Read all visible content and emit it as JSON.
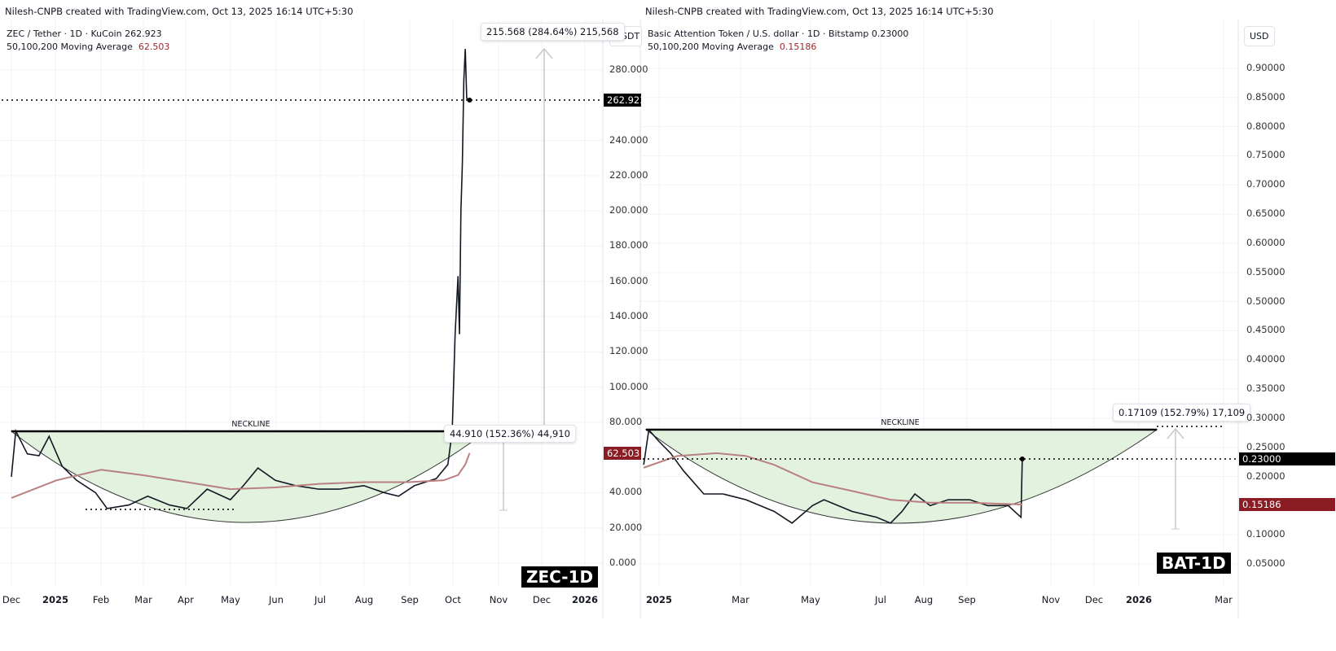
{
  "charts": [
    {
      "credit": "Nilesh-CNPB created with TradingView.com, Oct 13, 2025 16:14 UTC+5:30",
      "symbol_line": "ZEC / Tether · 1D · KuCoin  262.923",
      "ma_label": "50,100,200 Moving Average",
      "ma_value": "62.503",
      "unit": "USDT",
      "last_price_tag": "262.923",
      "ma_tag": "62.503",
      "upper_measure": "215.568 (284.64%) 215,568",
      "lower_measure": "44.910 (152.36%) 44,910",
      "neckline": "NECKLINE",
      "badge": "ZEC-1D",
      "yticks": [
        "280.000",
        "240.000",
        "220.000",
        "200.000",
        "180.000",
        "160.000",
        "140.000",
        "120.000",
        "100.000",
        "80.000",
        "40.000",
        "20.000",
        "0.000"
      ],
      "xticks": [
        "Dec",
        "2025",
        "Feb",
        "Mar",
        "Apr",
        "May",
        "Jun",
        "Jul",
        "Aug",
        "Sep",
        "Oct",
        "Nov",
        "Dec",
        "2026"
      ]
    },
    {
      "credit": "Nilesh-CNPB created with TradingView.com, Oct 13, 2025 16:14 UTC+5:30",
      "symbol_line": "Basic Attention Token / U.S. dollar · 1D · Bitstamp  0.23000",
      "ma_label": "50,100,200 Moving Average",
      "ma_value": "0.15186",
      "unit": "USD",
      "last_price_tag": "0.23000",
      "ma_tag": "0.15186",
      "upper_measure": "0.17109 (152.79%) 17,109",
      "neckline": "NECKLINE",
      "badge": "BAT-1D",
      "yticks": [
        "0.90000",
        "0.85000",
        "0.80000",
        "0.75000",
        "0.70000",
        "0.65000",
        "0.60000",
        "0.55000",
        "0.50000",
        "0.45000",
        "0.40000",
        "0.35000",
        "0.30000",
        "0.25000",
        "0.20000",
        "0.10000",
        "0.05000"
      ],
      "xticks": [
        "2025",
        "Mar",
        "May",
        "Jul",
        "Aug",
        "Sep",
        "Nov",
        "Dec",
        "2026",
        "Mar"
      ]
    }
  ],
  "chart_data": [
    {
      "type": "line",
      "title": "ZEC / Tether · 1D · KuCoin",
      "ylim": [
        0,
        290
      ],
      "colors": {
        "price": "#131722",
        "ma": "#b98080",
        "cup_fill": "#e3f2df"
      },
      "series": [
        {
          "name": "ZEC / Tether",
          "points": [
            [
              "2024-12-01",
              49
            ],
            [
              "2024-12-04",
              75
            ],
            [
              "2024-12-12",
              62
            ],
            [
              "2024-12-20",
              61
            ],
            [
              "2024-12-27",
              72
            ],
            [
              "2025-01-05",
              55
            ],
            [
              "2025-01-15",
              47
            ],
            [
              "2025-01-28",
              40
            ],
            [
              "2025-02-05",
              31
            ],
            [
              "2025-02-20",
              33
            ],
            [
              "2025-03-05",
              38
            ],
            [
              "2025-03-20",
              33
            ],
            [
              "2025-04-01",
              31
            ],
            [
              "2025-04-15",
              42
            ],
            [
              "2025-05-01",
              36
            ],
            [
              "2025-05-10",
              44
            ],
            [
              "2025-05-20",
              54
            ],
            [
              "2025-06-01",
              47
            ],
            [
              "2025-06-15",
              44
            ],
            [
              "2025-07-01",
              42
            ],
            [
              "2025-07-15",
              42
            ],
            [
              "2025-08-01",
              44
            ],
            [
              "2025-08-15",
              40
            ],
            [
              "2025-08-25",
              38
            ],
            [
              "2025-09-05",
              44
            ],
            [
              "2025-09-20",
              48
            ],
            [
              "2025-09-28",
              56
            ],
            [
              "2025-10-01",
              75
            ],
            [
              "2025-10-03",
              130
            ],
            [
              "2025-10-05",
              163
            ],
            [
              "2025-10-06",
              130
            ],
            [
              "2025-10-07",
              200
            ],
            [
              "2025-10-08",
              227
            ],
            [
              "2025-10-09",
              274
            ],
            [
              "2025-10-10",
              292
            ],
            [
              "2025-10-11",
              264
            ],
            [
              "2025-10-13",
              262.923
            ]
          ]
        },
        {
          "name": "50,100,200 Moving Average",
          "points": [
            [
              "2024-12-01",
              37
            ],
            [
              "2025-01-01",
              47
            ],
            [
              "2025-02-01",
              53
            ],
            [
              "2025-03-01",
              50
            ],
            [
              "2025-04-01",
              46
            ],
            [
              "2025-05-01",
              42
            ],
            [
              "2025-06-01",
              43
            ],
            [
              "2025-07-01",
              45
            ],
            [
              "2025-08-01",
              46
            ],
            [
              "2025-09-01",
              46
            ],
            [
              "2025-09-25",
              47
            ],
            [
              "2025-10-05",
              50
            ],
            [
              "2025-10-10",
              56
            ],
            [
              "2025-10-13",
              62.503
            ]
          ]
        }
      ]
    },
    {
      "type": "line",
      "title": "Basic Attention Token / U.S. dollar · 1D · Bitstamp",
      "ylim": [
        0.02,
        0.93
      ],
      "colors": {
        "price": "#131722",
        "ma": "#b98080",
        "cup_fill": "#e3f2df"
      },
      "series": [
        {
          "name": "Basic Attention Token / U.S. dollar",
          "points": [
            [
              "2024-12-20",
              0.22
            ],
            [
              "2024-12-24",
              0.28
            ],
            [
              "2025-01-01",
              0.26
            ],
            [
              "2025-01-10",
              0.24
            ],
            [
              "2025-01-20",
              0.21
            ],
            [
              "2025-02-05",
              0.17
            ],
            [
              "2025-02-20",
              0.17
            ],
            [
              "2025-03-10",
              0.16
            ],
            [
              "2025-04-01",
              0.14
            ],
            [
              "2025-04-15",
              0.12
            ],
            [
              "2025-05-01",
              0.15
            ],
            [
              "2025-05-10",
              0.16
            ],
            [
              "2025-06-01",
              0.14
            ],
            [
              "2025-06-20",
              0.13
            ],
            [
              "2025-07-01",
              0.12
            ],
            [
              "2025-07-10",
              0.14
            ],
            [
              "2025-07-20",
              0.17
            ],
            [
              "2025-08-01",
              0.15
            ],
            [
              "2025-08-15",
              0.16
            ],
            [
              "2025-09-01",
              0.16
            ],
            [
              "2025-09-15",
              0.15
            ],
            [
              "2025-10-01",
              0.15
            ],
            [
              "2025-10-11",
              0.13
            ],
            [
              "2025-10-12",
              0.23
            ]
          ]
        },
        {
          "name": "50,100,200 Moving Average",
          "points": [
            [
              "2024-12-20",
              0.215
            ],
            [
              "2025-01-15",
              0.235
            ],
            [
              "2025-02-15",
              0.24
            ],
            [
              "2025-03-10",
              0.235
            ],
            [
              "2025-04-01",
              0.22
            ],
            [
              "2025-05-01",
              0.19
            ],
            [
              "2025-06-01",
              0.175
            ],
            [
              "2025-07-01",
              0.16
            ],
            [
              "2025-08-01",
              0.155
            ],
            [
              "2025-09-01",
              0.155
            ],
            [
              "2025-10-12",
              0.15186
            ]
          ]
        }
      ]
    }
  ]
}
